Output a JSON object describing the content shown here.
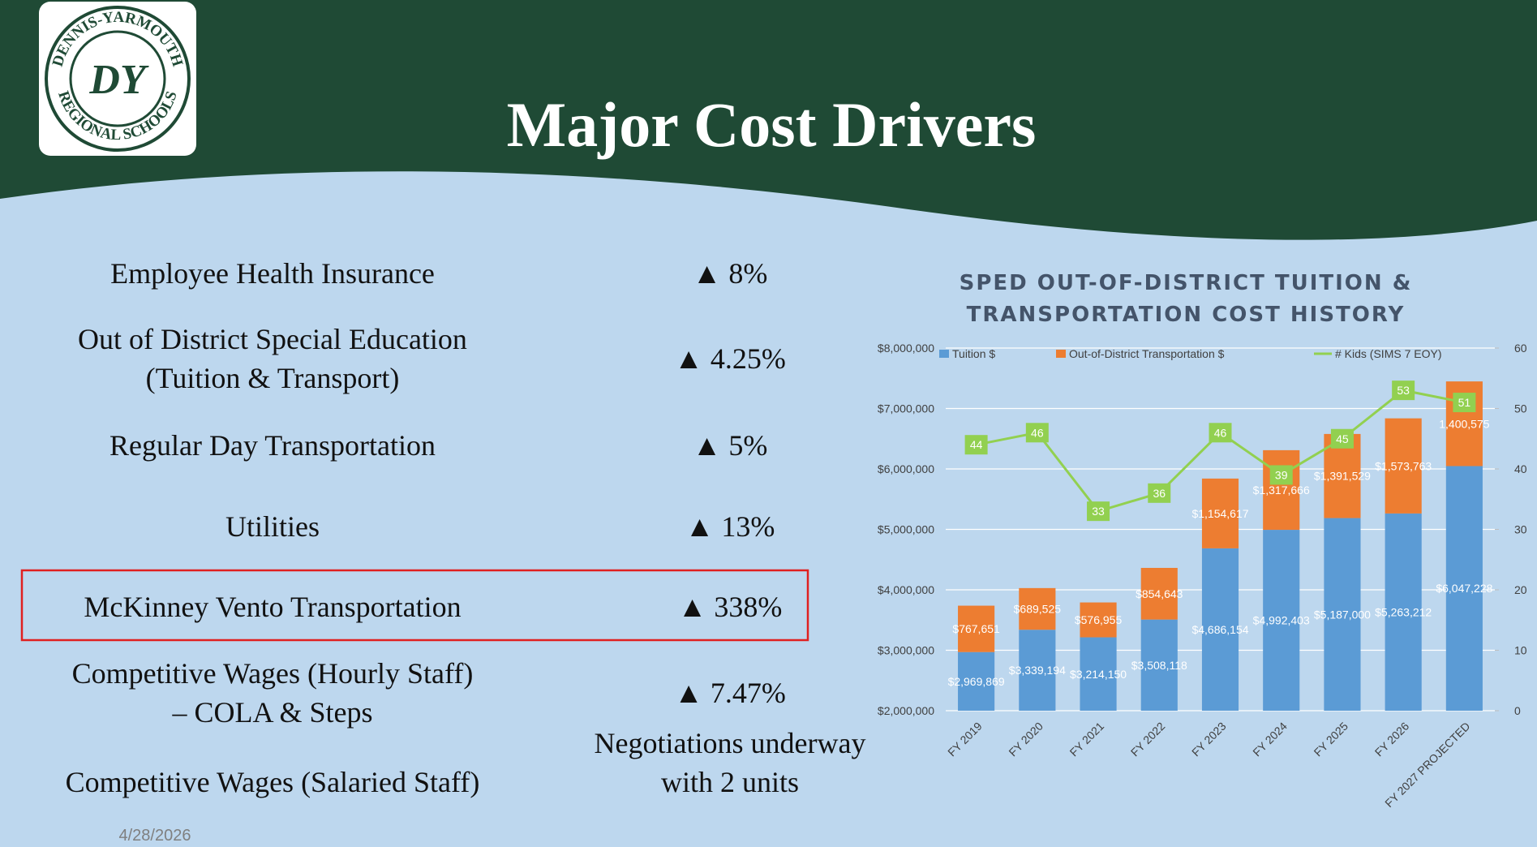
{
  "logo": {
    "top": "DENNIS-YARMOUTH",
    "bottom": "REGIONAL SCHOOLS",
    "mark": "DY"
  },
  "title": "Major Cost Drivers",
  "items": [
    {
      "label": [
        "Employee Health Insurance"
      ],
      "value": [
        "▲ 8%"
      ]
    },
    {
      "label": [
        "Out of District Special Education",
        "(Tuition & Transport)"
      ],
      "value": [
        "▲ 4.25%"
      ]
    },
    {
      "label": [
        "Regular Day Transportation"
      ],
      "value": [
        "▲ 5%"
      ]
    },
    {
      "label": [
        "Utilities"
      ],
      "value": [
        "▲ 13%"
      ]
    },
    {
      "label": [
        "McKinney Vento Transportation"
      ],
      "value": [
        "▲ 338%"
      ]
    },
    {
      "label": [
        "Competitive Wages (Hourly Staff)",
        "– COLA & Steps"
      ],
      "value": [
        "▲ 7.47%"
      ]
    },
    {
      "label": [
        "Competitive Wages (Salaried Staff)"
      ],
      "value": [
        "Negotiations underway",
        "with 2 units"
      ]
    }
  ],
  "date": "4/28/2026",
  "chart_data": {
    "type": "bar",
    "stacked": true,
    "title": [
      "SPED OUT-OF-DISTRICT TUITION &",
      "TRANSPORTATION COST HISTORY"
    ],
    "categories": [
      "FY 2019",
      "FY 2020",
      "FY 2021",
      "FY 2022",
      "FY 2023",
      "FY 2024",
      "FY 2025",
      "FY 2026",
      "FY 2027 PROJECTED"
    ],
    "series": [
      {
        "name": "Tuition $",
        "color": "#5b9bd5",
        "values": [
          2969869,
          3339194,
          3214150,
          3508118,
          4686154,
          4992403,
          5187000,
          5263212,
          6047228
        ],
        "value_labels": [
          "$2,969,869",
          "$3,339,194",
          "$3,214,150",
          "$3,508,118",
          "$4,686,154",
          "$4,992,403",
          "$5,187,000",
          "$5,263,212",
          "$6,047,228"
        ]
      },
      {
        "name": "Out-of-District Transportation $",
        "color": "#ed7d31",
        "values": [
          767651,
          689525,
          576955,
          854643,
          1154617,
          1317666,
          1391529,
          1573763,
          1400575
        ],
        "value_labels": [
          "$767,651",
          "$689,525",
          "$576,955",
          "$854,643",
          "$1,154,617",
          "$1,317,666",
          "$1,391,529",
          "$1,573,763",
          "1,400,575"
        ]
      },
      {
        "name": "# Kids (SIMS 7 EOY)",
        "color": "#92d050",
        "type": "line",
        "axis": "y2",
        "values": [
          44,
          46,
          33,
          36,
          46,
          39,
          45,
          53,
          51
        ]
      }
    ],
    "ylim": [
      2000000,
      8000000
    ],
    "yticks": [
      {
        "value": 2000000,
        "label": "$2,000,000"
      },
      {
        "value": 3000000,
        "label": "$3,000,000"
      },
      {
        "value": 4000000,
        "label": "$4,000,000"
      },
      {
        "value": 5000000,
        "label": "$5,000,000"
      },
      {
        "value": 6000000,
        "label": "$6,000,000"
      },
      {
        "value": 7000000,
        "label": "$7,000,000"
      },
      {
        "value": 8000000,
        "label": "$8,000,000"
      }
    ],
    "y2lim": [
      0,
      60
    ],
    "y2ticks": [
      0,
      10,
      20,
      30,
      40,
      50,
      60
    ],
    "grid": true,
    "legend": "top"
  }
}
